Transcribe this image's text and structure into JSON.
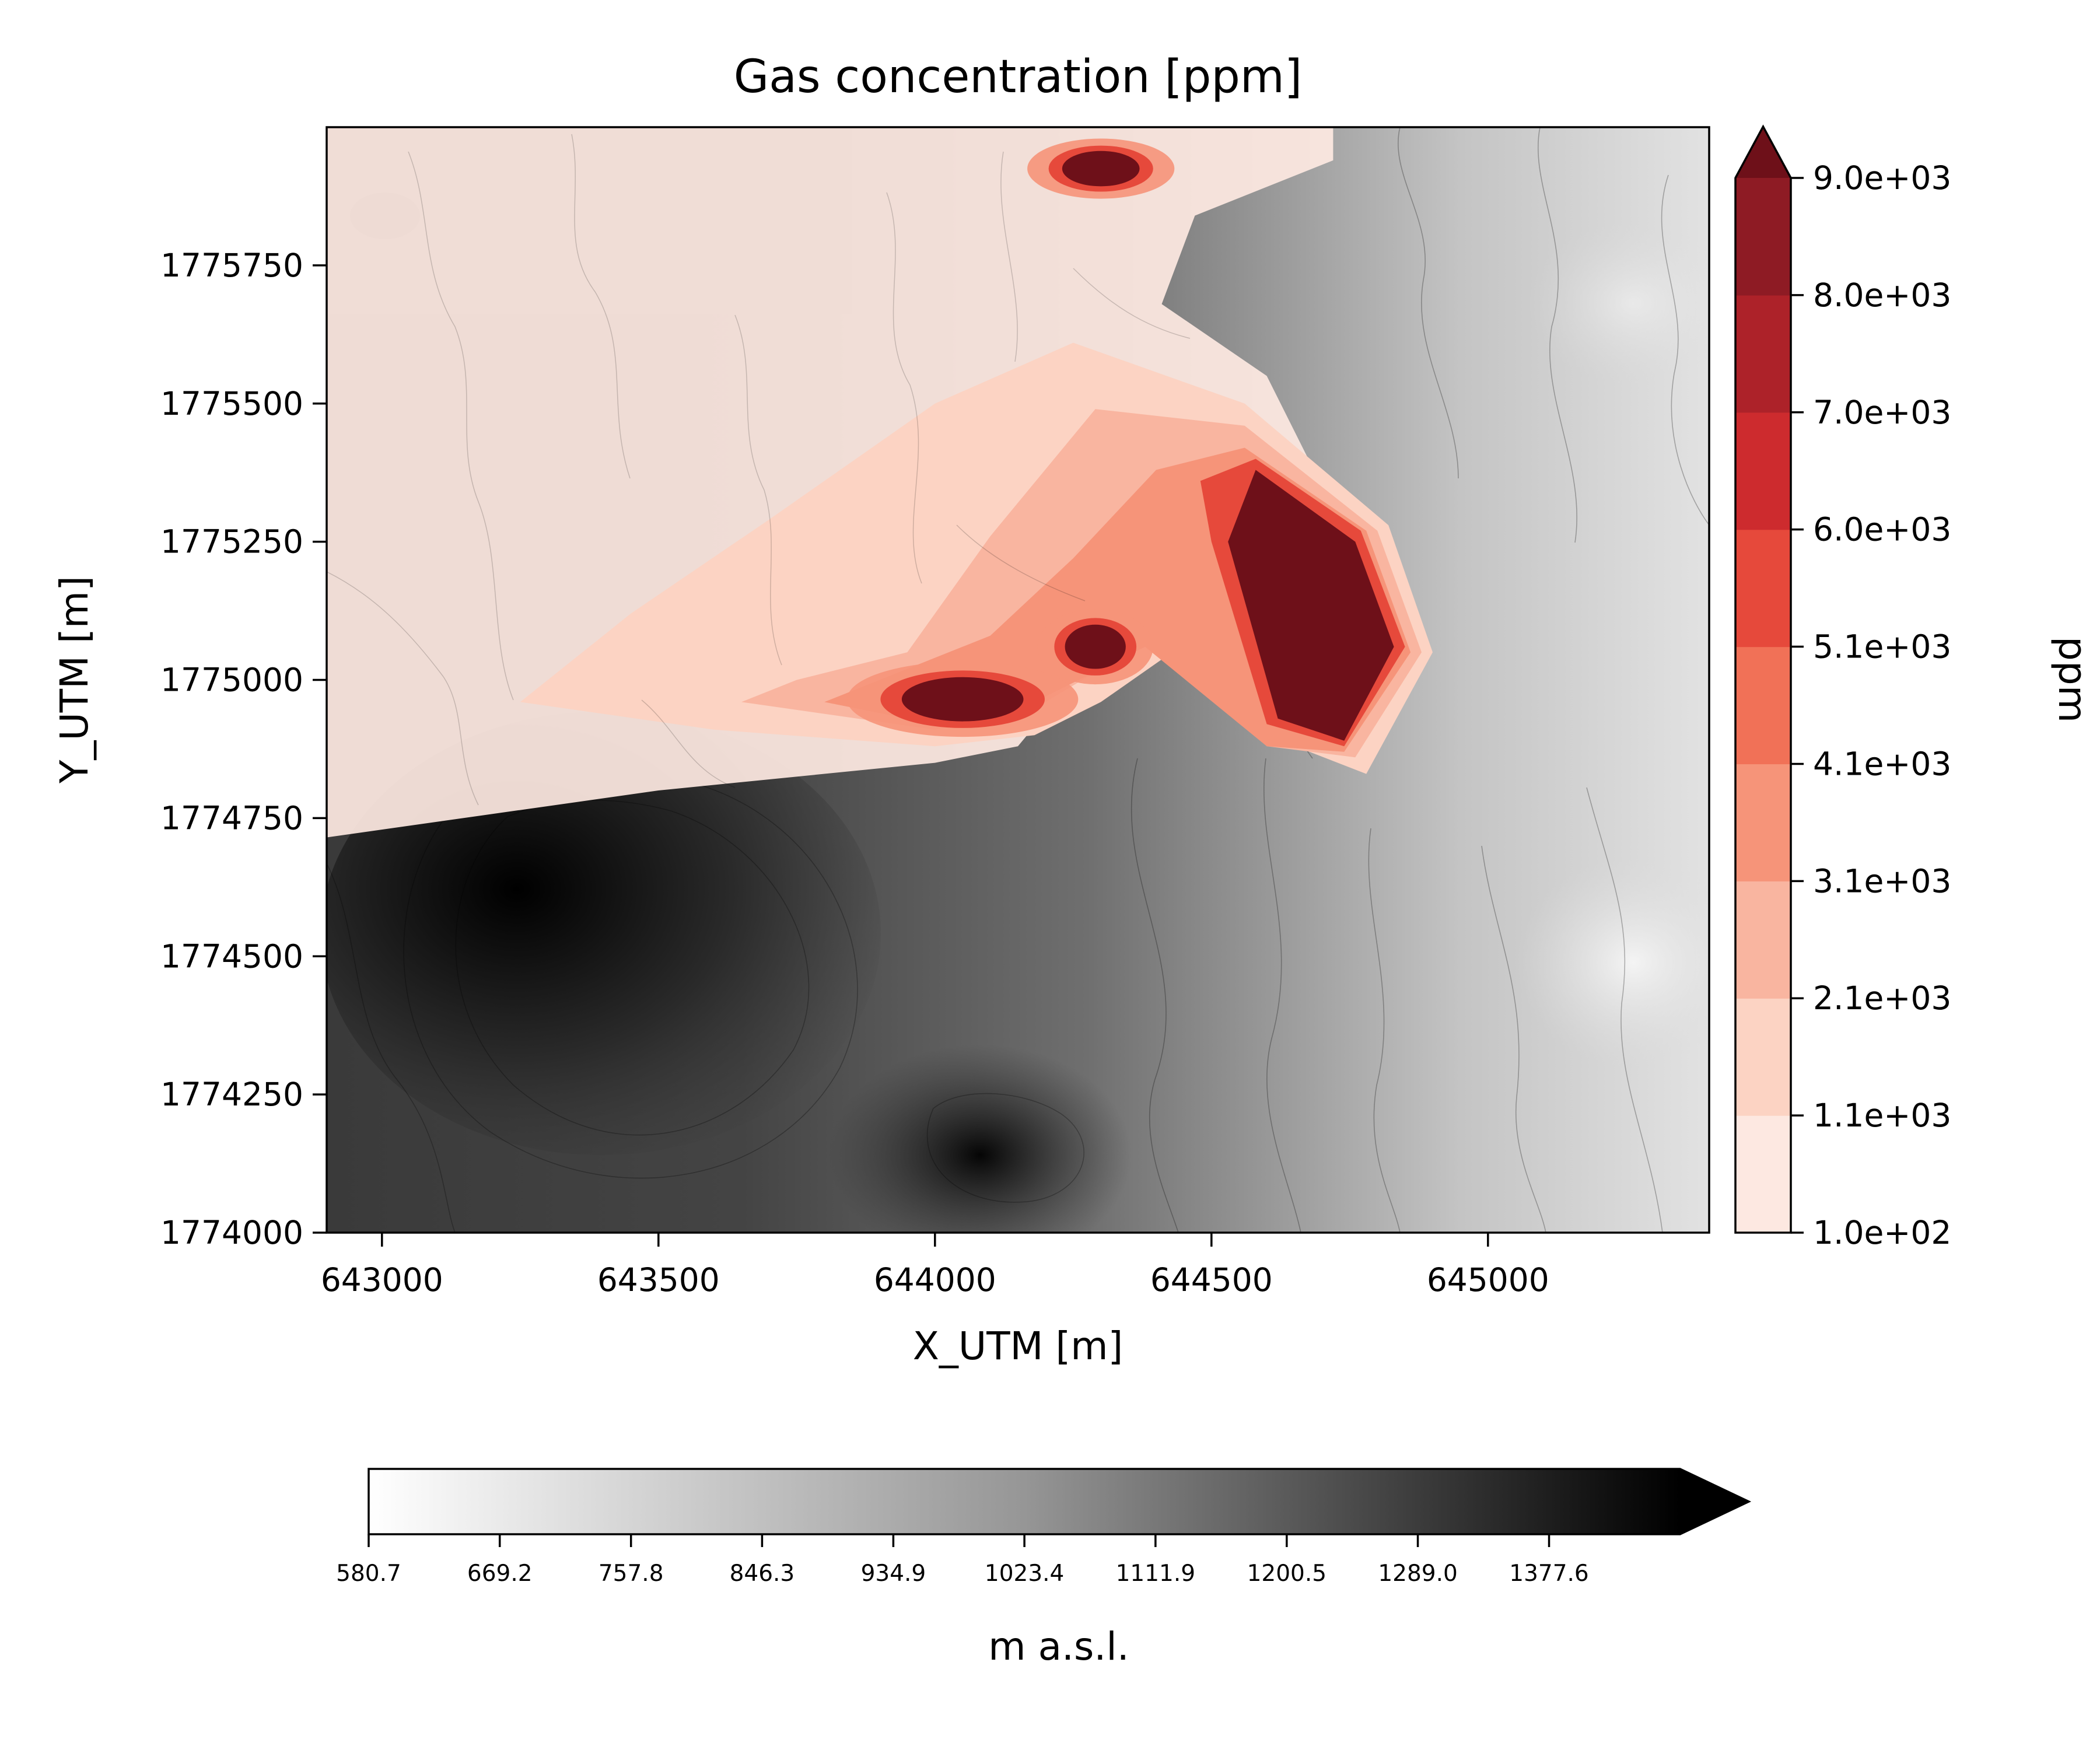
{
  "chart_data": {
    "type": "heatmap",
    "title": "Gas concentration [ppm]",
    "xlabel": "X_UTM [m]",
    "ylabel": "Y_UTM [m]",
    "xlim": [
      642900,
      645400
    ],
    "ylim": [
      1774000,
      1776000
    ],
    "xticks": [
      643000,
      643500,
      644000,
      644500,
      645000
    ],
    "xtick_labels": [
      "643000",
      "643500",
      "644000",
      "644500",
      "645000"
    ],
    "yticks": [
      1774000,
      1774250,
      1774500,
      1774750,
      1775000,
      1775250,
      1775500,
      1775750
    ],
    "ytick_labels": [
      "1774000",
      "1774250",
      "1774500",
      "1774750",
      "1775000",
      "1775250",
      "1775500",
      "1775750"
    ],
    "grid": false,
    "concentration_colorbar": {
      "label": "ppm",
      "levels": [
        100,
        1100,
        2100,
        3100,
        4100,
        5100,
        6000,
        7000,
        8000,
        9000
      ],
      "tick_labels": [
        "1.0e+02",
        "1.1e+03",
        "2.1e+03",
        "3.1e+03",
        "4.1e+03",
        "5.1e+03",
        "6.0e+03",
        "7.0e+03",
        "8.0e+03",
        "9.0e+03"
      ],
      "colors": [
        "#fde8e1",
        "#fcd3c3",
        "#f9b5a0",
        "#f69479",
        "#f17157",
        "#e6493b",
        "#cd2b2e",
        "#ad2229",
        "#8e1b24",
        "#6e1019"
      ],
      "extend": "max",
      "orientation": "vertical",
      "position": "right"
    },
    "elevation_colorbar": {
      "label": "m a.s.l.",
      "min": 580.7,
      "max": 1466.0,
      "tick_values": [
        580.7,
        669.2,
        757.8,
        846.3,
        934.9,
        1023.4,
        1111.9,
        1200.5,
        1289.0,
        1377.6
      ],
      "tick_labels": [
        "580.7",
        "669.2",
        "757.8",
        "846.3",
        "934.9",
        "1023.4",
        "1111.9",
        "1200.5",
        "1289.0",
        "1377.6"
      ],
      "colormap": "Greys",
      "extend": "max",
      "orientation": "horizontal",
      "position": "bottom"
    },
    "concentration_regions": [
      {
        "name": "plume-outer",
        "level": 100,
        "polygon": [
          [
            642900,
            1774715
          ],
          [
            643500,
            1774800
          ],
          [
            644000,
            1774850
          ],
          [
            644150,
            1774880
          ],
          [
            644250,
            1775000
          ],
          [
            644500,
            1775150
          ],
          [
            644700,
            1775350
          ],
          [
            644600,
            1775550
          ],
          [
            644410,
            1775680
          ],
          [
            644470,
            1775840
          ],
          [
            644720,
            1775940
          ],
          [
            644720,
            1776000
          ],
          [
            642900,
            1776000
          ]
        ]
      },
      {
        "name": "plume-1100",
        "level": 1100,
        "polygon": [
          [
            643250,
            1774960
          ],
          [
            643600,
            1774910
          ],
          [
            644000,
            1774880
          ],
          [
            644180,
            1774900
          ],
          [
            644300,
            1774960
          ],
          [
            644500,
            1775100
          ],
          [
            644600,
            1774900
          ],
          [
            644780,
            1774830
          ],
          [
            644900,
            1775050
          ],
          [
            644820,
            1775280
          ],
          [
            644560,
            1775500
          ],
          [
            644250,
            1775610
          ],
          [
            644000,
            1775500
          ],
          [
            643700,
            1775290
          ],
          [
            643450,
            1775120
          ]
        ]
      },
      {
        "name": "plume-2100",
        "level": 2100,
        "polygon": [
          [
            643650,
            1774960
          ],
          [
            644000,
            1774910
          ],
          [
            644200,
            1774960
          ],
          [
            644400,
            1775080
          ],
          [
            644600,
            1774880
          ],
          [
            644760,
            1774860
          ],
          [
            644880,
            1775050
          ],
          [
            644800,
            1775270
          ],
          [
            644560,
            1775460
          ],
          [
            644290,
            1775490
          ],
          [
            644100,
            1775260
          ],
          [
            643950,
            1775050
          ],
          [
            643750,
            1775000
          ]
        ]
      },
      {
        "name": "plume-3100",
        "level": 3100,
        "polygon": [
          [
            643800,
            1774960
          ],
          [
            644000,
            1774920
          ],
          [
            644180,
            1774960
          ],
          [
            644380,
            1775060
          ],
          [
            644600,
            1774880
          ],
          [
            644740,
            1774870
          ],
          [
            644860,
            1775050
          ],
          [
            644780,
            1775270
          ],
          [
            644560,
            1775420
          ],
          [
            644400,
            1775380
          ],
          [
            644250,
            1775220
          ],
          [
            644100,
            1775080
          ]
        ]
      },
      {
        "name": "plume-5100",
        "level": 5100,
        "polygon": [
          [
            644500,
            1775250
          ],
          [
            644600,
            1774920
          ],
          [
            644740,
            1774880
          ],
          [
            644850,
            1775060
          ],
          [
            644770,
            1775270
          ],
          [
            644580,
            1775400
          ],
          [
            644480,
            1775360
          ]
        ]
      },
      {
        "name": "plume-core",
        "level": 9000,
        "polygon": [
          [
            644530,
            1775250
          ],
          [
            644620,
            1774930
          ],
          [
            644740,
            1774890
          ],
          [
            644830,
            1775060
          ],
          [
            644760,
            1775250
          ],
          [
            644580,
            1775380
          ]
        ]
      },
      {
        "name": "hotspot-west",
        "level": 9000,
        "ellipse": {
          "cx": 644050,
          "cy": 1774965,
          "rx": 110,
          "ry": 40
        }
      },
      {
        "name": "hotspot-middle",
        "level": 9000,
        "ellipse": {
          "cx": 644290,
          "cy": 1775060,
          "rx": 55,
          "ry": 40
        }
      },
      {
        "name": "hotspot-north",
        "level": 9000,
        "ellipse": {
          "cx": 644300,
          "cy": 1775925,
          "rx": 70,
          "ry": 32
        }
      }
    ]
  }
}
